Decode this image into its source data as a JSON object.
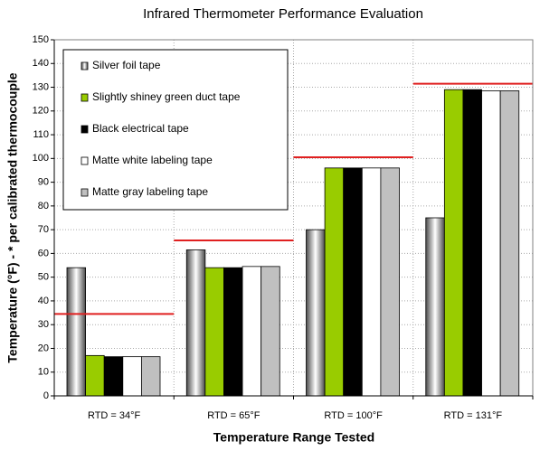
{
  "chart_data": {
    "type": "bar",
    "title": "Infrared Thermometer Performance Evaluation",
    "x_label": "Temperature Range Tested",
    "y_label": "Temperature (°F) - * per calibrated thermocouple",
    "categories": [
      "RTD = 34°F",
      "RTD = 65°F",
      "RTD = 100°F",
      "RTD = 131°F"
    ],
    "series": [
      {
        "name": "Silver foil tape",
        "color": "#4a4a4a",
        "values": [
          54,
          61.5,
          70,
          75
        ]
      },
      {
        "name": "Slightly shiney green duct tape",
        "color": "#99cc00",
        "values": [
          17,
          54,
          96,
          129
        ]
      },
      {
        "name": "Black electrical tape",
        "color": "#000000",
        "values": [
          16.5,
          54,
          96,
          129
        ]
      },
      {
        "name": "Matte white labeling tape",
        "color": "#ffffff",
        "values": [
          16.5,
          54.5,
          96,
          128.5
        ]
      },
      {
        "name": "Matte gray labeling tape",
        "color": "#c0c0c0",
        "values": [
          16.5,
          54.5,
          96,
          128.5
        ]
      }
    ],
    "reference_lines": {
      "color": "#e02020",
      "values": [
        34.5,
        65.5,
        100.5,
        131.5
      ]
    },
    "ylim": [
      0,
      150
    ],
    "yticks": [
      0,
      10,
      20,
      30,
      40,
      50,
      60,
      70,
      80,
      90,
      100,
      110,
      120,
      130,
      140,
      150
    ],
    "grid": true,
    "legend": "top-left"
  }
}
